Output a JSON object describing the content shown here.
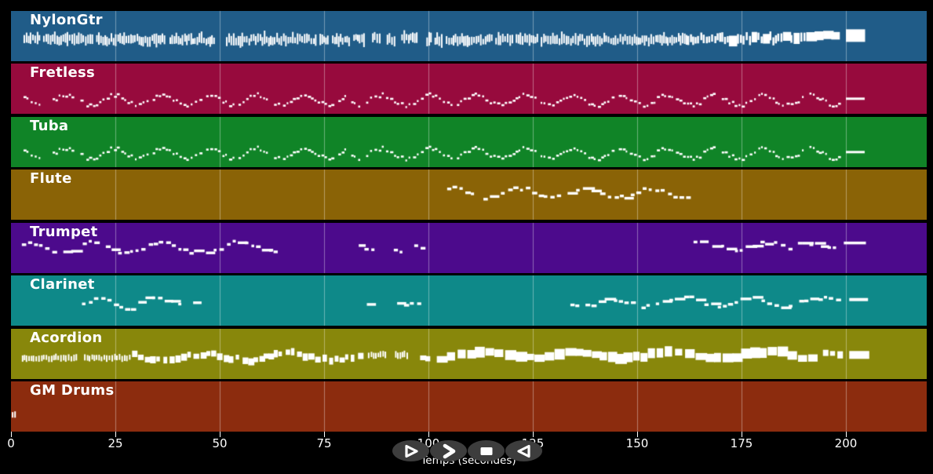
{
  "app": {
    "background": "#000000",
    "note_color": "#ffffff",
    "gridline_color": "rgba(255,255,255,0.38)"
  },
  "timeline": {
    "xlabel": "Temps (secondes)",
    "ticks": [
      0,
      25,
      50,
      75,
      100,
      125,
      150,
      175,
      200
    ],
    "seconds_per_tick": 25,
    "duration_seconds": 219
  },
  "transport": {
    "button_color": "#3d3d3d",
    "glyph_color": "#ffffff",
    "buttons": [
      {
        "id": "play",
        "icon": "play-icon"
      },
      {
        "id": "fast-forward",
        "icon": "fast-forward-icon"
      },
      {
        "id": "stop",
        "icon": "stop-icon"
      },
      {
        "id": "rewind",
        "icon": "rewind-icon"
      }
    ]
  },
  "tracks": [
    {
      "label": "NylonGtr",
      "color": "#205c88",
      "segments": [
        {
          "t0": 3.0,
          "t1": 49.0,
          "style": "bars",
          "y": 0.57,
          "seed": 101
        },
        {
          "t0": 51.5,
          "t1": 81.0,
          "style": "bars",
          "y": 0.57,
          "seed": 102
        },
        {
          "t0": 82.0,
          "t1": 84.5,
          "style": "bars",
          "y": 0.55,
          "seed": 103
        },
        {
          "t0": 86.5,
          "t1": 88.5,
          "style": "bars",
          "y": 0.54,
          "seed": 104
        },
        {
          "t0": 90.0,
          "t1": 92.0,
          "style": "bars",
          "y": 0.56,
          "seed": 105
        },
        {
          "t0": 93.5,
          "t1": 97.5,
          "style": "bars",
          "y": 0.55,
          "seed": 106
        },
        {
          "t0": 99.5,
          "t1": 162.0,
          "style": "bars",
          "y": 0.57,
          "seed": 107
        },
        {
          "t0": 162.0,
          "t1": 190.0,
          "style": "barsbig",
          "y": 0.55,
          "seed": 108
        },
        {
          "t0": 190.5,
          "t1": 197.6,
          "style": "bigblocks",
          "y": 0.52,
          "amp": 0.03,
          "seed": 109
        },
        {
          "t0": 200.0,
          "t1": 204.6,
          "style": "block",
          "y": 0.49,
          "h": 16
        }
      ]
    },
    {
      "label": "Fretless",
      "color": "#970a3d",
      "segments": [
        {
          "t0": 3.0,
          "t1": 80.5,
          "style": "wavy",
          "y": 0.71,
          "amp": 0.1,
          "seed": 42
        },
        {
          "t0": 81.5,
          "t1": 198.5,
          "style": "wavy",
          "y": 0.71,
          "amp": 0.1,
          "seed": 43
        },
        {
          "t0": 200.0,
          "t1": 204.5,
          "style": "line",
          "y": 0.7,
          "h": 3
        }
      ]
    },
    {
      "label": "Tuba",
      "color": "#108427",
      "segments": [
        {
          "t0": 3.0,
          "t1": 80.5,
          "style": "wavy",
          "y": 0.71,
          "amp": 0.1,
          "seed": 42
        },
        {
          "t0": 81.5,
          "t1": 198.5,
          "style": "wavy",
          "y": 0.71,
          "amp": 0.1,
          "seed": 43
        },
        {
          "t0": 200.0,
          "t1": 204.5,
          "style": "line",
          "y": 0.7,
          "h": 3
        }
      ]
    },
    {
      "label": "Flute",
      "color": "#8a6306",
      "segments": [
        {
          "t0": 103.0,
          "t1": 161.8,
          "style": "dashes",
          "y": 0.44,
          "amp": 0.09,
          "seed": 7
        }
      ]
    },
    {
      "label": "Trumpet",
      "color": "#4c0a8c",
      "segments": [
        {
          "t0": 2.6,
          "t1": 44.0,
          "style": "dashes",
          "y": 0.47,
          "amp": 0.1,
          "seed": 11
        },
        {
          "t0": 45.5,
          "t1": 63.0,
          "style": "dashes",
          "y": 0.46,
          "amp": 0.1,
          "seed": 12
        },
        {
          "t0": 83.3,
          "t1": 87.6,
          "style": "dashes",
          "y": 0.5,
          "amp": 0.05,
          "seed": 13
        },
        {
          "t0": 91.7,
          "t1": 98.9,
          "style": "dashes",
          "y": 0.49,
          "amp": 0.05,
          "seed": 14
        },
        {
          "t0": 163.5,
          "t1": 187.0,
          "style": "dashes",
          "y": 0.44,
          "amp": 0.08,
          "seed": 15
        },
        {
          "t0": 188.5,
          "t1": 193.0,
          "style": "dashes",
          "y": 0.42,
          "amp": 0.04,
          "seed": 16
        },
        {
          "t0": 194.0,
          "t1": 197.6,
          "style": "dashes",
          "y": 0.42,
          "amp": 0.03,
          "seed": 17
        },
        {
          "t0": 199.5,
          "t1": 204.8,
          "style": "line",
          "y": 0.4,
          "h": 3.5
        }
      ]
    },
    {
      "label": "Clarinet",
      "color": "#0e8989",
      "segments": [
        {
          "t0": 17.0,
          "t1": 29.0,
          "style": "dashes",
          "y": 0.55,
          "amp": 0.09,
          "seed": 21
        },
        {
          "t0": 30.5,
          "t1": 44.0,
          "style": "dashes",
          "y": 0.5,
          "amp": 0.06,
          "seed": 22
        },
        {
          "t0": 84.0,
          "t1": 88.0,
          "style": "dashes",
          "y": 0.52,
          "amp": 0.04,
          "seed": 23
        },
        {
          "t0": 92.5,
          "t1": 98.5,
          "style": "dashes",
          "y": 0.52,
          "amp": 0.04,
          "seed": 24
        },
        {
          "t0": 134.0,
          "t1": 158.0,
          "style": "dashes",
          "y": 0.52,
          "amp": 0.08,
          "seed": 25
        },
        {
          "t0": 159.0,
          "t1": 187.0,
          "style": "dashes",
          "y": 0.5,
          "amp": 0.08,
          "seed": 26
        },
        {
          "t0": 188.0,
          "t1": 198.3,
          "style": "dashes",
          "y": 0.48,
          "amp": 0.05,
          "seed": 27
        },
        {
          "t0": 200.8,
          "t1": 205.3,
          "style": "line",
          "y": 0.48,
          "h": 4
        }
      ]
    },
    {
      "label": "Acordion",
      "color": "#88870b",
      "segments": [
        {
          "t0": 2.6,
          "t1": 16.0,
          "style": "ticks",
          "y": 0.58,
          "seed": 31
        },
        {
          "t0": 17.5,
          "t1": 28.5,
          "style": "ticks",
          "y": 0.58,
          "seed": 32
        },
        {
          "t0": 29.0,
          "t1": 60.0,
          "style": "blocks",
          "y": 0.56,
          "amp": 0.06,
          "seed": 33
        },
        {
          "t0": 60.5,
          "t1": 84.0,
          "style": "blocks",
          "y": 0.55,
          "amp": 0.06,
          "seed": 34
        },
        {
          "t0": 85.5,
          "t1": 89.5,
          "style": "ticks",
          "y": 0.52,
          "seed": 35
        },
        {
          "t0": 92.0,
          "t1": 95.0,
          "style": "ticks",
          "y": 0.52,
          "seed": 36
        },
        {
          "t0": 98.0,
          "t1": 100.5,
          "style": "blocks",
          "y": 0.54,
          "amp": 0.02,
          "seed": 37
        },
        {
          "t0": 102.0,
          "t1": 193.0,
          "style": "bigblocks",
          "y": 0.52,
          "amp": 0.07,
          "seed": 38
        },
        {
          "t0": 194.5,
          "t1": 198.5,
          "style": "blocks",
          "y": 0.5,
          "amp": 0.02,
          "seed": 39
        },
        {
          "t0": 200.8,
          "t1": 205.6,
          "style": "block",
          "y": 0.52,
          "h": 10
        }
      ]
    },
    {
      "label": "GM Drums",
      "color": "#8c2c0e",
      "segments": [
        {
          "t0": 0.2,
          "t1": 1.4,
          "style": "ticks",
          "y": 0.66,
          "seed": 41
        }
      ]
    }
  ]
}
